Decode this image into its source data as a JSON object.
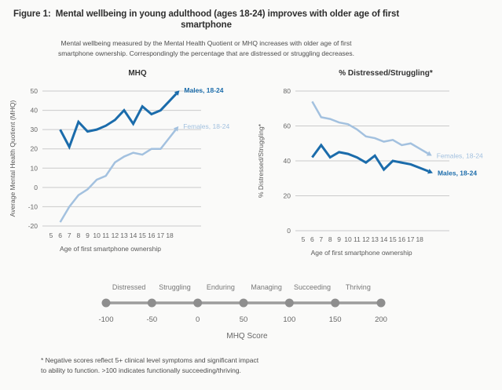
{
  "figure": {
    "title": "Figure 1:  Mental wellbeing in young adulthood (ages 18-24) improves with older age of first smartphone",
    "subtitle_line1": "Mental wellbeing measured by the Mental Health Quotient or MHQ increases with older age of first",
    "subtitle_line2": "smartphone ownership. Correspondingly the percentage that are distressed or struggling decreases.",
    "footnote_line1": "* Negative scores reflect 5+ clinical level symptoms and significant impact",
    "footnote_line2": "to ability to function. >100 indicates functionally succeeding/thriving."
  },
  "colors": {
    "males": "#1b6cab",
    "females": "#a3c1df",
    "grid": "#cacaca",
    "tick_text": "#666666",
    "axis_text": "#595959",
    "scale_line": "#9c9c9c",
    "scale_dot": "#8e8e8e",
    "scale_label": "#787878",
    "scale_number": "#666666"
  },
  "chart_data": [
    {
      "type": "line",
      "title": "MHQ",
      "xlabel": "Age of first smartphone ownership",
      "ylabel": "Average Mental Health Quotient (MHQ)",
      "x": [
        6,
        7,
        8,
        9,
        10,
        11,
        12,
        13,
        14,
        15,
        16,
        17,
        18
      ],
      "xticks": [
        5,
        6,
        7,
        8,
        9,
        10,
        11,
        12,
        13,
        14,
        15,
        16,
        17,
        18
      ],
      "ylim": [
        -20,
        50
      ],
      "yticks": [
        50,
        40,
        30,
        20,
        10,
        0,
        -10,
        -20
      ],
      "legend_position": "line-end-labels",
      "grid": true,
      "series": [
        {
          "name": "Males, 18-24",
          "color_key": "males",
          "bold": true,
          "values": [
            30,
            21,
            34,
            29,
            30,
            32,
            35,
            40,
            33,
            42,
            38,
            40,
            45
          ]
        },
        {
          "name": "Females, 18-24",
          "color_key": "females",
          "bold": false,
          "values": [
            -18,
            -10,
            -4,
            -1,
            4,
            6,
            13,
            16,
            18,
            17,
            20,
            20,
            26
          ]
        }
      ]
    },
    {
      "type": "line",
      "title": "% Distressed/Struggling*",
      "xlabel": "Age of first smartphone ownership",
      "ylabel": "% Distressed/Struggling*",
      "x": [
        6,
        7,
        8,
        9,
        10,
        11,
        12,
        13,
        14,
        15,
        16,
        17,
        18
      ],
      "xticks": [
        5,
        6,
        7,
        8,
        9,
        10,
        11,
        12,
        13,
        14,
        15,
        16,
        17,
        18
      ],
      "ylim": [
        0,
        80
      ],
      "yticks": [
        80,
        60,
        40,
        20,
        0
      ],
      "legend_position": "line-end-labels",
      "grid": true,
      "series": [
        {
          "name": "Females, 18-24",
          "color_key": "females",
          "bold": false,
          "values": [
            74,
            65,
            64,
            62,
            61,
            58,
            54,
            53,
            51,
            52,
            49,
            50,
            47
          ]
        },
        {
          "name": "Males, 18-24",
          "color_key": "males",
          "bold": true,
          "values": [
            42,
            49,
            42,
            45,
            44,
            42,
            39,
            43,
            35,
            40,
            39,
            38,
            36
          ]
        }
      ]
    }
  ],
  "scale": {
    "categories": [
      "Distressed",
      "Struggling",
      "Enduring",
      "Managing",
      "Succeeding",
      "Thriving"
    ],
    "values": [
      -100,
      -50,
      0,
      50,
      100,
      150,
      200
    ],
    "caption": "MHQ Score"
  }
}
